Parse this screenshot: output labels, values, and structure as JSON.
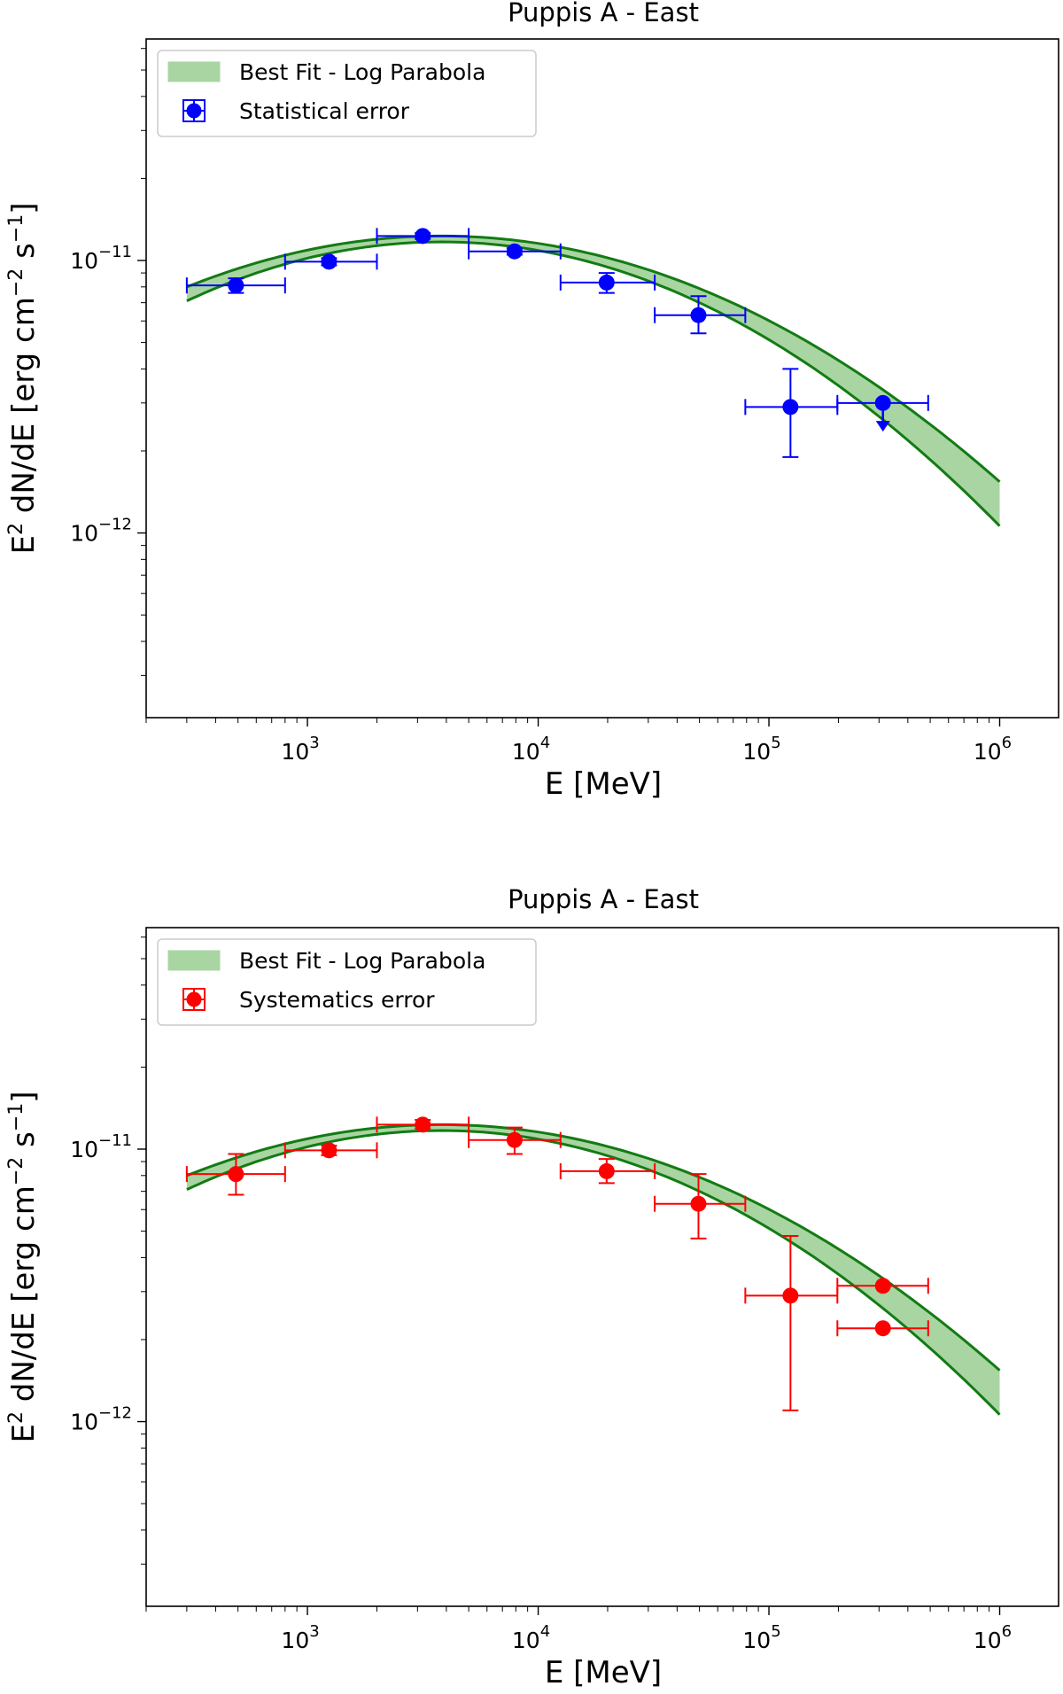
{
  "chart_data": [
    {
      "type": "scatter",
      "title": "Puppis A - East",
      "xlabel": "E [MeV]",
      "ylabel": "E2 dN/dE [erg cm-2 s-1]",
      "xscale": "log",
      "yscale": "log",
      "xlim": [
        200,
        1800000
      ],
      "ylim": [
        2.1e-13,
        6.5e-11
      ],
      "xticks": [
        {
          "value": 1000,
          "label_base": "10",
          "label_exp": "3"
        },
        {
          "value": 10000,
          "label_base": "10",
          "label_exp": "4"
        },
        {
          "value": 100000,
          "label_base": "10",
          "label_exp": "5"
        },
        {
          "value": 1000000,
          "label_base": "10",
          "label_exp": "6"
        }
      ],
      "yticks": [
        {
          "value": 1e-11,
          "label_base": "10",
          "label_exp": "−11"
        },
        {
          "value": 1e-12,
          "label_base": "10",
          "label_exp": "−12"
        }
      ],
      "legend": {
        "location": "upper left",
        "entries": [
          {
            "label": "Best Fit - Log Parabola",
            "kind": "band"
          },
          {
            "label": "Statistical error",
            "kind": "errorbar"
          }
        ]
      },
      "colors": {
        "points": "#0000ff",
        "band_fill": "#a8d5a2",
        "band_edge": "#137b13"
      },
      "band": {
        "x_min": 300,
        "x_max": 1000000,
        "peak_energy": 3800,
        "upper": {
          "peak": 1.23e-11,
          "curvature": 0.154
        },
        "lower": {
          "peak": 1.17e-11,
          "curvature": 0.178
        }
      },
      "series": [
        {
          "name": "Statistical error",
          "points": [
            {
              "x": 490,
              "y": 8.1e-12,
              "xlo": 300,
              "xhi": 800,
              "ylo": 7.6e-12,
              "yhi": 8.6e-12
            },
            {
              "x": 1240,
              "y": 9.9e-12,
              "xlo": 800,
              "xhi": 2000,
              "ylo": 9.6e-12,
              "yhi": 1.02e-11
            },
            {
              "x": 3160,
              "y": 1.23e-11,
              "xlo": 2000,
              "xhi": 5000,
              "ylo": 1.2e-11,
              "yhi": 1.26e-11
            },
            {
              "x": 7900,
              "y": 1.08e-11,
              "xlo": 5000,
              "xhi": 12500,
              "ylo": 1.05e-11,
              "yhi": 1.11e-11
            },
            {
              "x": 19800,
              "y": 8.3e-12,
              "xlo": 12500,
              "xhi": 32000,
              "ylo": 7.6e-12,
              "yhi": 9e-12
            },
            {
              "x": 49500,
              "y": 6.3e-12,
              "xlo": 32000,
              "xhi": 79000,
              "ylo": 5.4e-12,
              "yhi": 7.4e-12
            },
            {
              "x": 124000,
              "y": 2.9e-12,
              "xlo": 79000,
              "xhi": 198000,
              "ylo": 1.9e-12,
              "yhi": 4e-12
            },
            {
              "x": 312000,
              "y": 3e-12,
              "xlo": 198000,
              "xhi": 490000,
              "upper_limit": true,
              "arrow_to": 2.5e-12
            }
          ]
        }
      ]
    },
    {
      "type": "scatter",
      "title": "Puppis A - East",
      "xlabel": "E [MeV]",
      "ylabel": "E2 dN/dE [erg cm-2 s-1]",
      "xscale": "log",
      "yscale": "log",
      "xlim": [
        200,
        1800000
      ],
      "ylim": [
        2.1e-13,
        6.5e-11
      ],
      "xticks": [
        {
          "value": 1000,
          "label_base": "10",
          "label_exp": "3"
        },
        {
          "value": 10000,
          "label_base": "10",
          "label_exp": "4"
        },
        {
          "value": 100000,
          "label_base": "10",
          "label_exp": "5"
        },
        {
          "value": 1000000,
          "label_base": "10",
          "label_exp": "6"
        }
      ],
      "yticks": [
        {
          "value": 1e-11,
          "label_base": "10",
          "label_exp": "−11"
        },
        {
          "value": 1e-12,
          "label_base": "10",
          "label_exp": "−12"
        }
      ],
      "legend": {
        "location": "upper left",
        "entries": [
          {
            "label": "Best Fit - Log Parabola",
            "kind": "band"
          },
          {
            "label": "Systematics error",
            "kind": "errorbar"
          }
        ]
      },
      "colors": {
        "points": "#ff0000",
        "band_fill": "#a8d5a2",
        "band_edge": "#137b13"
      },
      "band": {
        "x_min": 300,
        "x_max": 1000000,
        "peak_energy": 3800,
        "upper": {
          "peak": 1.23e-11,
          "curvature": 0.154
        },
        "lower": {
          "peak": 1.17e-11,
          "curvature": 0.178
        }
      },
      "series": [
        {
          "name": "Systematics error",
          "points": [
            {
              "x": 490,
              "y": 8.1e-12,
              "xlo": 300,
              "xhi": 800,
              "ylo": 6.8e-12,
              "yhi": 9.6e-12
            },
            {
              "x": 1240,
              "y": 9.9e-12,
              "xlo": 800,
              "xhi": 2000,
              "ylo": 9.5e-12,
              "yhi": 1.03e-11
            },
            {
              "x": 3160,
              "y": 1.23e-11,
              "xlo": 2000,
              "xhi": 5000,
              "ylo": 1.19e-11,
              "yhi": 1.28e-11
            },
            {
              "x": 7900,
              "y": 1.08e-11,
              "xlo": 5000,
              "xhi": 12500,
              "ylo": 9.6e-12,
              "yhi": 1.2e-11
            },
            {
              "x": 19800,
              "y": 8.3e-12,
              "xlo": 12500,
              "xhi": 32000,
              "ylo": 7.5e-12,
              "yhi": 9.2e-12
            },
            {
              "x": 49500,
              "y": 6.3e-12,
              "xlo": 32000,
              "xhi": 79000,
              "ylo": 4.7e-12,
              "yhi": 8.1e-12
            },
            {
              "x": 124000,
              "y": 2.9e-12,
              "xlo": 79000,
              "xhi": 198000,
              "ylo": 1.1e-12,
              "yhi": 4.8e-12
            },
            {
              "x": 312000,
              "y": 3.15e-12,
              "xlo": 198000,
              "xhi": 490000
            },
            {
              "x": 312000,
              "y": 2.2e-12,
              "xlo": 198000,
              "xhi": 490000
            }
          ]
        }
      ]
    }
  ]
}
